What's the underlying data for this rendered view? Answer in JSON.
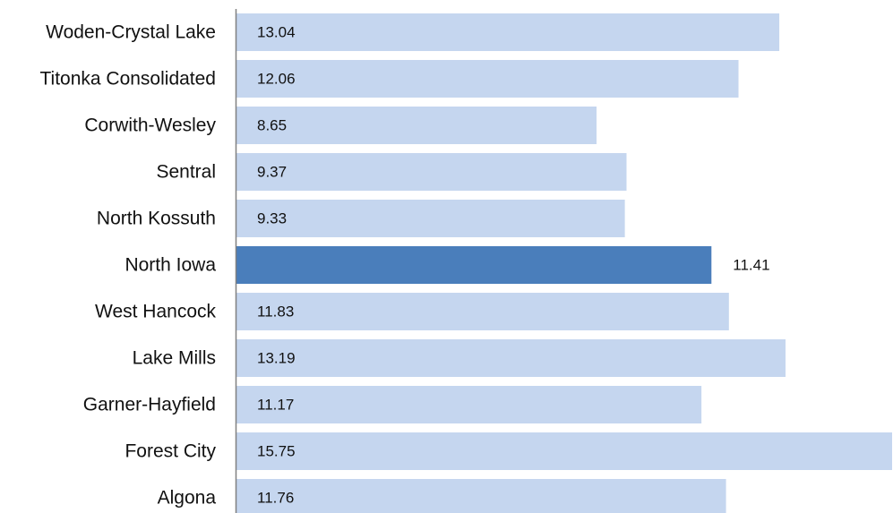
{
  "chart_data": {
    "type": "bar",
    "orientation": "horizontal",
    "categories": [
      "Woden-Crystal Lake",
      "Titonka Consolidated",
      "Corwith-Wesley",
      "Sentral",
      "North Kossuth",
      "North Iowa",
      "West Hancock",
      "Lake Mills",
      "Garner-Hayfield",
      "Forest City",
      "Algona"
    ],
    "values": [
      13.04,
      12.06,
      8.65,
      9.37,
      9.33,
      11.41,
      11.83,
      13.19,
      11.17,
      15.75,
      11.76
    ],
    "value_labels": [
      "13.04",
      "12.06",
      "8.65",
      "9.37",
      "9.33",
      "11.41",
      "11.83",
      "13.19",
      "11.17",
      "15.75",
      "11.76"
    ],
    "highlight_category": "North Iowa",
    "xlim": [
      0,
      15.75
    ],
    "grid": false,
    "legend": "none",
    "colors": {
      "bar": "#c5d6ef",
      "highlight": "#4a7ebb",
      "axis": "#808080",
      "text": "#111111"
    }
  }
}
